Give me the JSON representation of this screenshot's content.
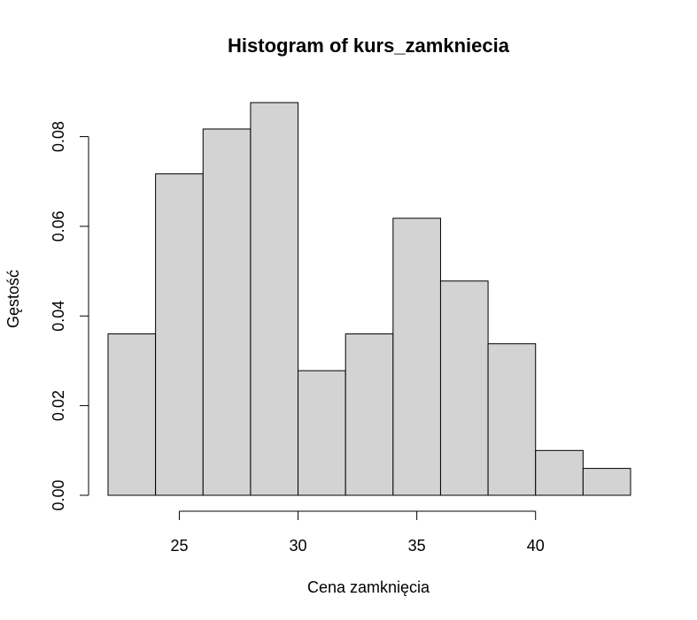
{
  "chart_data": {
    "type": "bar",
    "title": "Histogram of kurs_zamkniecia",
    "xlabel": "Cena zamknięcia",
    "ylabel": "Gęstość",
    "bin_edges": [
      22,
      24,
      26,
      28,
      30,
      32,
      34,
      36,
      38,
      40,
      42,
      44
    ],
    "values": [
      0.036,
      0.0717,
      0.0817,
      0.0876,
      0.0278,
      0.036,
      0.0618,
      0.0478,
      0.0338,
      0.01,
      0.006
    ],
    "xlim": [
      22,
      44
    ],
    "ylim": [
      0,
      0.0876
    ],
    "x_ticks": [
      25,
      30,
      35,
      40
    ],
    "x_tick_labels": [
      "25",
      "30",
      "35",
      "40"
    ],
    "y_ticks": [
      0,
      0.02,
      0.04,
      0.06,
      0.08
    ],
    "y_tick_labels": [
      "0.00",
      "0.02",
      "0.04",
      "0.06",
      "0.08"
    ],
    "grid": false,
    "colors": {
      "bar_fill": "#d3d3d3",
      "bar_stroke": "#000000"
    }
  }
}
